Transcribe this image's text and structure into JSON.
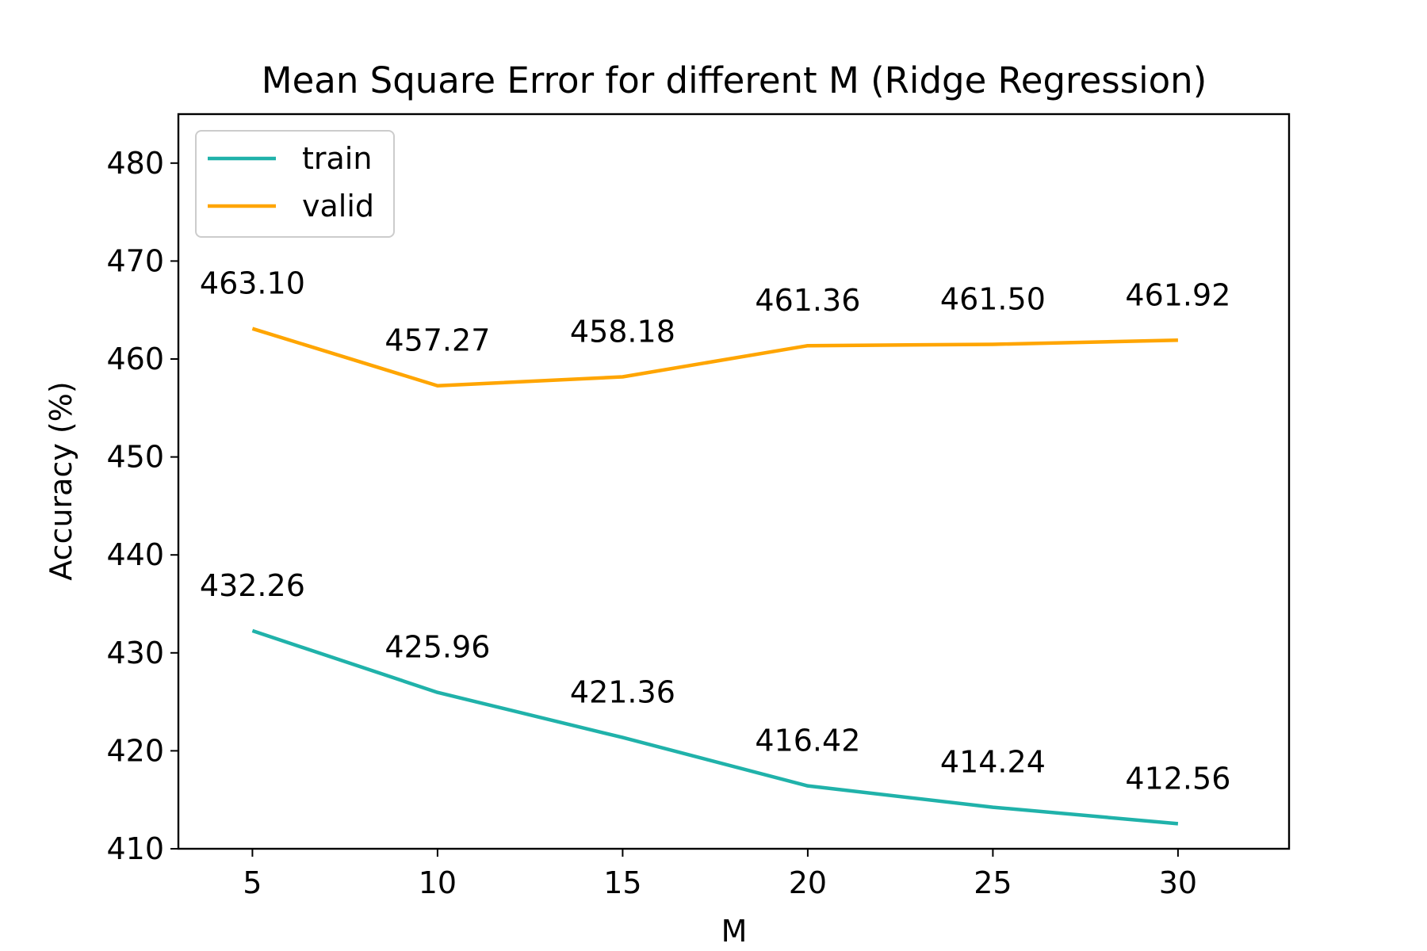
{
  "chart_data": {
    "type": "line",
    "title": "Mean Square Error for different M (Ridge Regression)",
    "xlabel": "M",
    "ylabel": "Accuracy (%)",
    "x": [
      5,
      10,
      15,
      20,
      25,
      30
    ],
    "xlim": [
      3,
      33
    ],
    "ylim": [
      410,
      485
    ],
    "x_ticks": [
      5,
      10,
      15,
      20,
      25,
      30
    ],
    "y_ticks": [
      410,
      420,
      430,
      440,
      450,
      460,
      470,
      480
    ],
    "grid": false,
    "legend": "upper left",
    "series": [
      {
        "name": "train",
        "color": "#20b2aa",
        "values": [
          432.26,
          425.96,
          421.36,
          416.42,
          414.24,
          412.56
        ],
        "labels": [
          "432.26",
          "425.96",
          "421.36",
          "416.42",
          "414.24",
          "412.56"
        ]
      },
      {
        "name": "valid",
        "color": "#ffa500",
        "values": [
          463.1,
          457.27,
          458.18,
          461.36,
          461.5,
          461.92
        ],
        "labels": [
          "463.10",
          "457.27",
          "458.18",
          "461.36",
          "461.50",
          "461.92"
        ]
      }
    ]
  }
}
